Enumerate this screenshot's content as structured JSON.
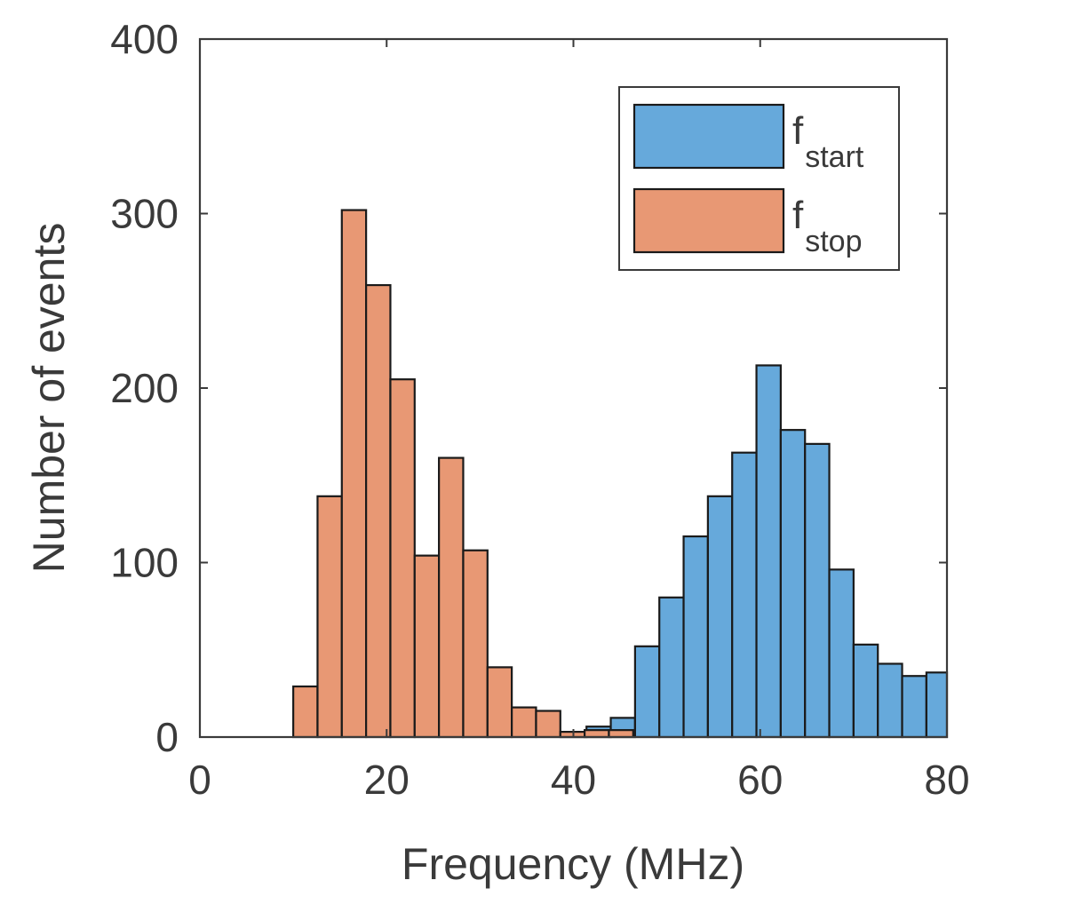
{
  "chart_data": {
    "type": "bar",
    "title": "",
    "xlabel": "Frequency (MHz)",
    "ylabel": "Number of events",
    "xlim": [
      0,
      80
    ],
    "ylim": [
      0,
      400
    ],
    "xticks": [
      "0",
      "20",
      "40",
      "60",
      "80"
    ],
    "yticks": [
      "0",
      "100",
      "200",
      "300",
      "400"
    ],
    "grid": false,
    "legend_position": "top-right",
    "bin_width": 2.6,
    "series": [
      {
        "name": "fstart",
        "legend_main": "f",
        "legend_sub": "start",
        "color": "#66A9DB",
        "bins": [
          {
            "x0": 38.8,
            "x1": 41.4,
            "value": 2
          },
          {
            "x0": 41.4,
            "x1": 44.0,
            "value": 6
          },
          {
            "x0": 44.0,
            "x1": 46.6,
            "value": 11
          },
          {
            "x0": 46.6,
            "x1": 49.2,
            "value": 52
          },
          {
            "x0": 49.2,
            "x1": 51.8,
            "value": 80
          },
          {
            "x0": 51.8,
            "x1": 54.4,
            "value": 115
          },
          {
            "x0": 54.4,
            "x1": 57.0,
            "value": 138
          },
          {
            "x0": 57.0,
            "x1": 59.6,
            "value": 163
          },
          {
            "x0": 59.6,
            "x1": 62.2,
            "value": 213
          },
          {
            "x0": 62.2,
            "x1": 64.8,
            "value": 176
          },
          {
            "x0": 64.8,
            "x1": 67.4,
            "value": 168
          },
          {
            "x0": 67.4,
            "x1": 70.0,
            "value": 96
          },
          {
            "x0": 70.0,
            "x1": 72.6,
            "value": 53
          },
          {
            "x0": 72.6,
            "x1": 75.2,
            "value": 42
          },
          {
            "x0": 75.2,
            "x1": 77.8,
            "value": 35
          },
          {
            "x0": 77.8,
            "x1": 80.4,
            "value": 37
          }
        ]
      },
      {
        "name": "fstop",
        "legend_main": "f",
        "legend_sub": "stop",
        "color": "#E89874",
        "bins": [
          {
            "x0": 10.0,
            "x1": 12.6,
            "value": 29
          },
          {
            "x0": 12.6,
            "x1": 15.2,
            "value": 138
          },
          {
            "x0": 15.2,
            "x1": 17.8,
            "value": 302
          },
          {
            "x0": 17.8,
            "x1": 20.4,
            "value": 259
          },
          {
            "x0": 20.4,
            "x1": 23.0,
            "value": 205
          },
          {
            "x0": 23.0,
            "x1": 25.6,
            "value": 104
          },
          {
            "x0": 25.6,
            "x1": 28.2,
            "value": 160
          },
          {
            "x0": 28.2,
            "x1": 30.8,
            "value": 107
          },
          {
            "x0": 30.8,
            "x1": 33.4,
            "value": 40
          },
          {
            "x0": 33.4,
            "x1": 36.0,
            "value": 17
          },
          {
            "x0": 36.0,
            "x1": 38.6,
            "value": 15
          },
          {
            "x0": 38.6,
            "x1": 41.2,
            "value": 3
          },
          {
            "x0": 41.2,
            "x1": 43.8,
            "value": 4
          },
          {
            "x0": 43.8,
            "x1": 46.4,
            "value": 4
          }
        ]
      }
    ]
  }
}
